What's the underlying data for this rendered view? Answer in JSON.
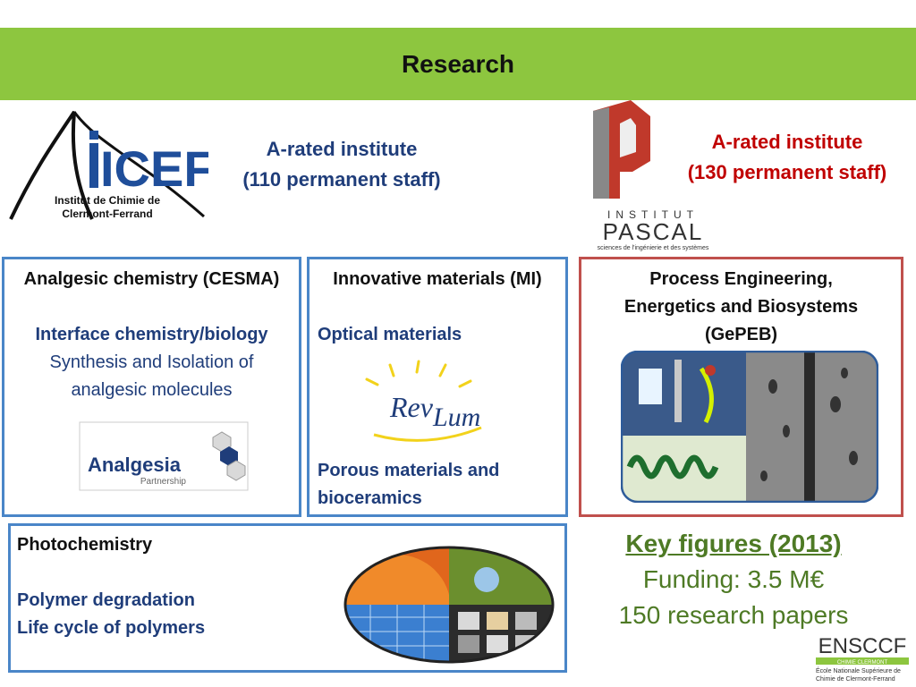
{
  "slide": {
    "title": "Research"
  },
  "icef": {
    "logo_text_main": "ICEF",
    "logo_line1": "Institut de Chimie de",
    "logo_line2": "Clermont-Ferrand",
    "caption_line1": "A-rated institute",
    "caption_line2": "(110 permanent staff)"
  },
  "pascal": {
    "logo_word1": "INSTITUT",
    "logo_word2": "PASCAL",
    "logo_tagline": "sciences de l'ingénierie et des systèmes",
    "caption_line1": "A-rated institute",
    "caption_line2": "(130 permanent staff)"
  },
  "cesma": {
    "title": "Analgesic chemistry (CESMA)",
    "subtitle": "Interface chemistry/biology",
    "body_line1": "Synthesis and Isolation of",
    "body_line2": "analgesic molecules",
    "logo_text": "Analgesia",
    "logo_sub": "Partnership"
  },
  "mi": {
    "title": "Innovative materials (MI)",
    "item1": "Optical materials",
    "logo_rev": "Rev",
    "logo_lum": "Lum",
    "item2_line1": "Porous materials and",
    "item2_line2": "bioceramics"
  },
  "gepeb": {
    "title_line1": "Process Engineering,",
    "title_line2": "Energetics and Biosystems",
    "title_line3": "(GePEB)"
  },
  "photo": {
    "title": "Photochemistry",
    "item1": "Polymer degradation",
    "item2": "Life cycle of polymers"
  },
  "key_figures": {
    "title": "Key figures (2013)",
    "funding": "Funding: 3.5 M€",
    "papers": "150 research papers"
  },
  "ensccf": {
    "logo_text": "ENSCCF",
    "bar_text": "CHIMIE CLERMONT",
    "line1": "École Nationale Supérieure de",
    "line2": "Chimie de Clermont-Ferrand"
  },
  "colors": {
    "banner": "#8dc63f",
    "blue_border": "#4a86c8",
    "red_border": "#c0504d",
    "navy_text": "#1f3d7a",
    "red_text": "#c00000",
    "green_text": "#4e7a25"
  }
}
